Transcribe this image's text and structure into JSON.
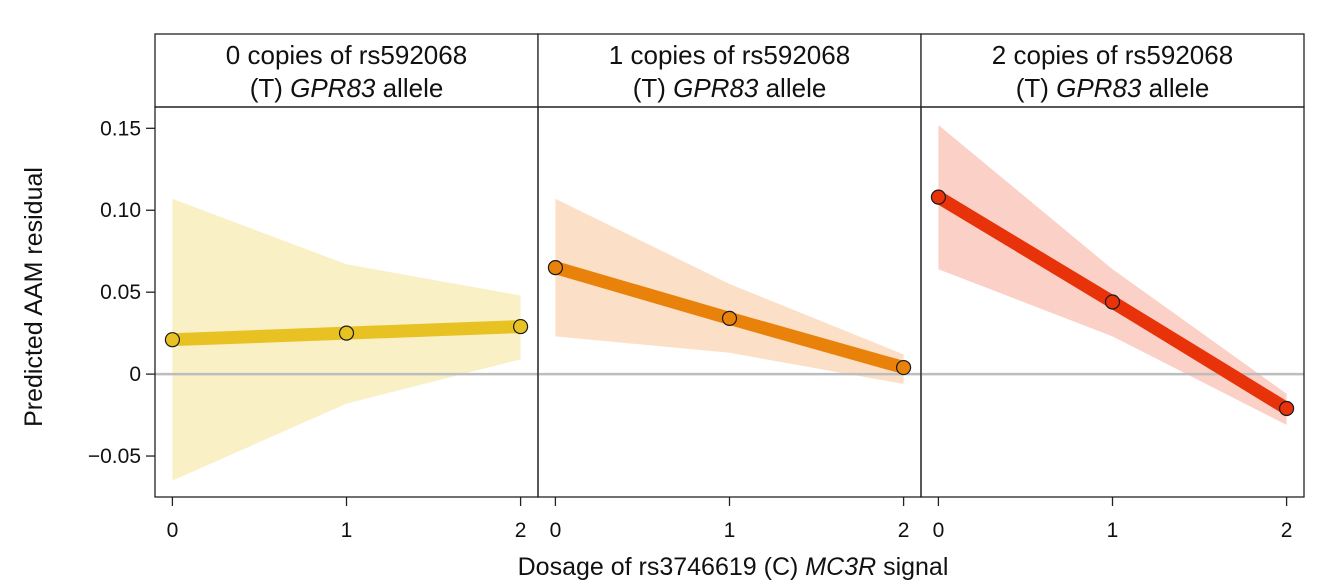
{
  "chart_data": {
    "type": "line",
    "xlabel_parts": [
      "Dosage of rs3746619 (C) ",
      "MC3R",
      " signal"
    ],
    "ylabel": "Predicted AAM residual",
    "xlim": [
      -0.1,
      2.1
    ],
    "ylim": [
      -0.075,
      0.163
    ],
    "x_ticks": [
      "0",
      "1",
      "2"
    ],
    "y_ticks": [
      {
        "value": -0.05,
        "label": "−0.05"
      },
      {
        "value": 0,
        "label": "0"
      },
      {
        "value": 0.05,
        "label": "0.05"
      },
      {
        "value": 0.1,
        "label": "0.10"
      },
      {
        "value": 0.15,
        "label": "0.15"
      }
    ],
    "reference_line_y": 0,
    "reference_color": "#bdbdbd",
    "panels": [
      {
        "title_line1": "0 copies of rs592068",
        "title_line2_parts": [
          "(T) ",
          "GPR83",
          " allele"
        ],
        "line_color": "#e8c222",
        "band_color": "#faf0c6",
        "x": [
          0,
          1,
          2
        ],
        "y": [
          0.021,
          0.025,
          0.029
        ],
        "ci_upper": [
          0.107,
          0.067,
          0.048
        ],
        "ci_lower": [
          -0.065,
          -0.018,
          0.009
        ]
      },
      {
        "title_line1": "1 copies of rs592068",
        "title_line2_parts": [
          "(T) ",
          "GPR83",
          " allele"
        ],
        "line_color": "#e8820a",
        "band_color": "#fbe0c7",
        "x": [
          0,
          1,
          2
        ],
        "y": [
          0.065,
          0.034,
          0.004
        ],
        "ci_upper": [
          0.107,
          0.055,
          0.012
        ],
        "ci_lower": [
          0.023,
          0.013,
          -0.006
        ]
      },
      {
        "title_line1": "2 copies of rs592068",
        "title_line2_parts": [
          "(T) ",
          "GPR83",
          " allele"
        ],
        "line_color": "#e8320a",
        "band_color": "#fbd0c6",
        "x": [
          0,
          1,
          2
        ],
        "y": [
          0.108,
          0.044,
          -0.021
        ],
        "ci_upper": [
          0.152,
          0.064,
          -0.012
        ],
        "ci_lower": [
          0.064,
          0.023,
          -0.031
        ]
      }
    ]
  }
}
